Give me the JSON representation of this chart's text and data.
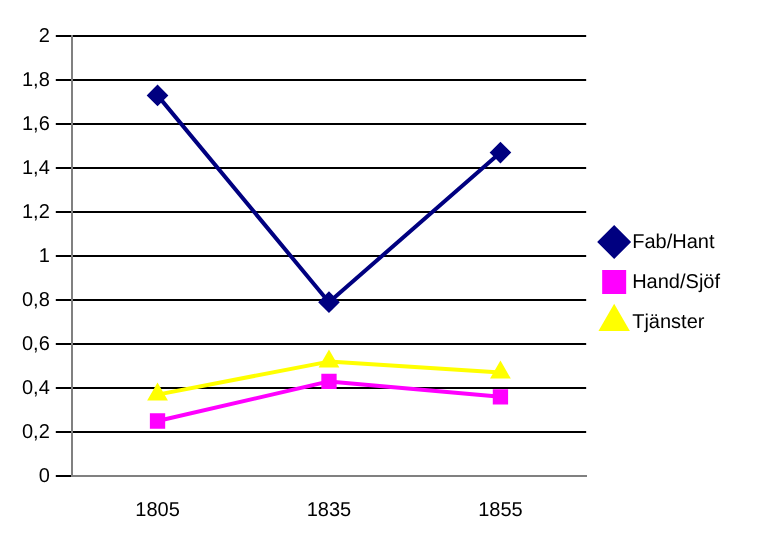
{
  "chart_data": {
    "type": "line",
    "categories": [
      "1805",
      "1835",
      "1855"
    ],
    "series": [
      {
        "name": "Fab/Hant",
        "color": "#000080",
        "marker": "diamond",
        "values": [
          1.73,
          0.79,
          1.47
        ]
      },
      {
        "name": "Hand/Sjöf",
        "color": "#ff00ff",
        "marker": "square",
        "values": [
          0.25,
          0.43,
          0.36
        ]
      },
      {
        "name": "Tjänster",
        "color": "#ffff00",
        "marker": "triangle",
        "values": [
          0.37,
          0.52,
          0.47
        ]
      }
    ],
    "ylim": [
      0,
      2
    ],
    "yticks": [
      0,
      {
        "value": 0.2,
        "label": "0,2"
      },
      {
        "value": 0.4,
        "label": "0,4"
      },
      {
        "value": 0.6,
        "label": "0,6"
      },
      {
        "value": 0.8,
        "label": "0,8"
      },
      1,
      {
        "value": 1.2,
        "label": "1,2"
      },
      {
        "value": 1.4,
        "label": "1,4"
      },
      {
        "value": 1.6,
        "label": "1,6"
      },
      {
        "value": 1.8,
        "label": "1,8"
      },
      2
    ],
    "grid": "y",
    "legend": "right",
    "line_style": "solid"
  }
}
